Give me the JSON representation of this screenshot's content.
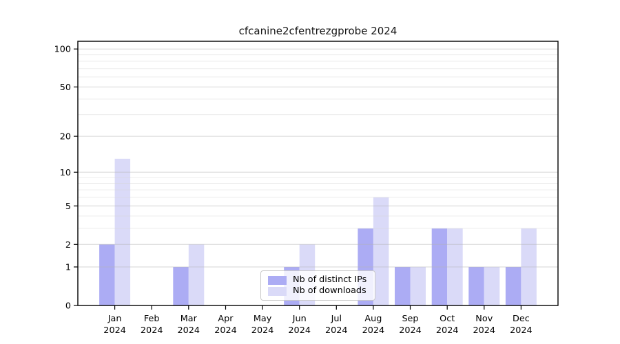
{
  "chart_data": {
    "type": "bar",
    "title": "cfcanine2cfentrezgprobe 2024",
    "categories": [
      {
        "month": "Jan",
        "year": "2024"
      },
      {
        "month": "Feb",
        "year": "2024"
      },
      {
        "month": "Mar",
        "year": "2024"
      },
      {
        "month": "Apr",
        "year": "2024"
      },
      {
        "month": "May",
        "year": "2024"
      },
      {
        "month": "Jun",
        "year": "2024"
      },
      {
        "month": "Jul",
        "year": "2024"
      },
      {
        "month": "Aug",
        "year": "2024"
      },
      {
        "month": "Sep",
        "year": "2024"
      },
      {
        "month": "Oct",
        "year": "2024"
      },
      {
        "month": "Nov",
        "year": "2024"
      },
      {
        "month": "Dec",
        "year": "2024"
      }
    ],
    "series": [
      {
        "name": "Nb of distinct IPs",
        "color": "#acacf4",
        "values": [
          2,
          0,
          1,
          0,
          0,
          1,
          0,
          3,
          1,
          3,
          1,
          1
        ]
      },
      {
        "name": "Nb of downloads",
        "color": "#dadaf8",
        "values": [
          13,
          0,
          2,
          0,
          0,
          2,
          0,
          6,
          1,
          3,
          1,
          3
        ]
      }
    ],
    "xlabel": "",
    "ylabel": "",
    "y_axis": {
      "scale": "log1p",
      "major_ticks": [
        100,
        50,
        20,
        10,
        5,
        2,
        1,
        0
      ],
      "minor_gridlines": [
        3,
        4,
        6,
        7,
        8,
        9,
        30,
        40,
        60,
        70,
        80,
        90
      ],
      "top_value": 115,
      "ylim": [
        0,
        115
      ]
    },
    "legend_position": "lower center, inside plot",
    "grid": true,
    "colors": {
      "axis": "#000000",
      "tick_label": "#000000",
      "grid_major": "#b5b5b5",
      "grid_minor": "#d5d5d5",
      "title": "#141414"
    }
  }
}
